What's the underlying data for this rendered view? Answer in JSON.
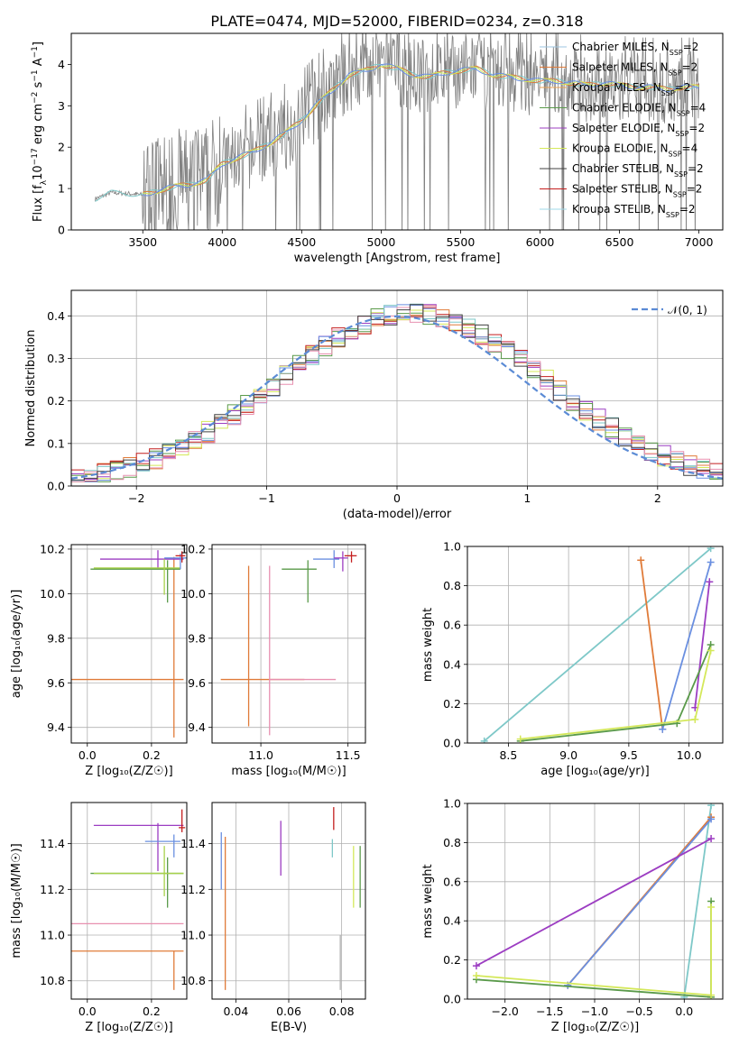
{
  "title": "PLATE=0474, MJD=52000, FIBERID=0234, z=0.318",
  "colors": {
    "grid": "#b0b0b0",
    "frame": "#000000",
    "gray": "#808080",
    "norm": "#5b8bd5",
    "orange": "#e07b39",
    "purple": "#9c3dc2",
    "yellow": "#d4e85a",
    "green": "#5a9a4a",
    "teal": "#7ec8c8",
    "red": "#c41e1e",
    "blue": "#6a8fe0",
    "pink": "#e890b0",
    "lime": "#a8d24a"
  },
  "chart_data": [
    {
      "id": "spectrum",
      "type": "line",
      "xlabel": "wavelength [Angstrom, rest frame]",
      "ylabel_parts": [
        "Flux [f",
        "λ",
        "10",
        "−17",
        " erg cm",
        "−2",
        " s",
        "−1",
        " A",
        "−1",
        "]"
      ],
      "xlim": [
        3050,
        7150
      ],
      "ylim": [
        0,
        4.75
      ],
      "xticks": [
        3500,
        4000,
        4500,
        5000,
        5500,
        6000,
        6500,
        7000
      ],
      "yticks": [
        0,
        1,
        2,
        3,
        4
      ],
      "legend": [
        {
          "label": "Chabrier MILES, N",
          "sub": "SSP",
          "suffix": "=2",
          "color": "#9ec6e0"
        },
        {
          "label": "Salpeter MILES, N",
          "sub": "SSP",
          "suffix": "=2",
          "color": "#e07b39"
        },
        {
          "label": "Kroupa MILES, N",
          "sub": "SSP",
          "suffix": "=2",
          "color": "#e8a050"
        },
        {
          "label": "Chabrier ELODIE, N",
          "sub": "SSP",
          "suffix": "=4",
          "color": "#5a9a4a"
        },
        {
          "label": "Salpeter ELODIE, N",
          "sub": "SSP",
          "suffix": "=2",
          "color": "#9c3dc2"
        },
        {
          "label": "Kroupa ELODIE, N",
          "sub": "SSP",
          "suffix": "=4",
          "color": "#d4e85a"
        },
        {
          "label": "Chabrier STELIB, N",
          "sub": "SSP",
          "suffix": "=2",
          "color": "#404040"
        },
        {
          "label": "Salpeter STELIB, N",
          "sub": "SSP",
          "suffix": "=2",
          "color": "#c41e1e"
        },
        {
          "label": "Kroupa STELIB, N",
          "sub": "SSP",
          "suffix": "=2",
          "color": "#9fd8e8"
        }
      ],
      "model_curve": {
        "x": [
          3200,
          3300,
          3400,
          3500,
          3600,
          3700,
          3800,
          3900,
          4000,
          4100,
          4200,
          4300,
          4400,
          4500,
          4600,
          4700,
          4800,
          4900,
          5000,
          5100,
          5200,
          5300,
          5400,
          5500,
          5600,
          5700,
          5800,
          5900,
          6000,
          6100,
          6200,
          6300,
          6400,
          6500,
          6600,
          6700,
          6800,
          6900,
          7000
        ],
        "y": [
          0.75,
          0.9,
          0.88,
          0.85,
          0.95,
          1.05,
          1.1,
          1.2,
          1.6,
          1.75,
          1.9,
          2.1,
          2.35,
          2.65,
          3.05,
          3.4,
          3.75,
          3.85,
          4.0,
          3.9,
          3.75,
          3.7,
          3.8,
          3.85,
          3.9,
          3.75,
          3.7,
          3.65,
          3.6,
          3.6,
          3.55,
          3.5,
          3.55,
          3.5,
          3.45,
          3.45,
          3.4,
          3.45,
          3.45
        ]
      }
    },
    {
      "id": "residuals",
      "type": "histogram",
      "xlabel": "(data-model)/error",
      "ylabel": "Normed distribution",
      "xlim": [
        -2.5,
        2.5
      ],
      "ylim": [
        0,
        0.46
      ],
      "xticks": [
        -2,
        -1,
        0,
        1,
        2
      ],
      "xticklabels": [
        "−2",
        "−1",
        "0",
        "1",
        "2"
      ],
      "yticks": [
        0.0,
        0.1,
        0.2,
        0.3,
        0.4
      ],
      "yticklabels": [
        "0.0",
        "0.1",
        "0.2",
        "0.3",
        "0.4"
      ],
      "legend_label": "𝒩(0, 1)",
      "normal_curve": {
        "mean": 0,
        "sigma": 1
      }
    },
    {
      "id": "Z-age",
      "type": "errorbar",
      "xlabel": "Z [log₁₀(Z/Z☉)]",
      "ylabel": "age  [log₁₀(age/yr)]",
      "xlim": [
        -0.05,
        0.31
      ],
      "ylim": [
        9.33,
        10.22
      ],
      "xticks": [
        0.0,
        0.2
      ],
      "xticklabels": [
        "0.0",
        "0.2"
      ],
      "yticks": [
        9.4,
        9.6,
        9.8,
        10.0,
        10.2
      ],
      "yticklabels": [
        "9.4",
        "9.6",
        "9.8",
        "10.0",
        "10.2"
      ],
      "points": [
        {
          "x": 0.27,
          "xerr": [
            0.32,
            0.03
          ],
          "y": 9.615,
          "yerr": [
            0.26,
            0.55
          ],
          "color": "#e07b39"
        },
        {
          "x": 0.22,
          "xerr": [
            0.18,
            0.08
          ],
          "y": 10.155,
          "yerr": [
            0.04,
            0.04
          ],
          "color": "#9c3dc2"
        },
        {
          "x": 0.25,
          "xerr": [
            0.24,
            0.04
          ],
          "y": 10.11,
          "yerr": [
            0.15,
            0.04
          ],
          "color": "#5a9a4a"
        },
        {
          "x": 0.24,
          "xerr": [
            0.22,
            0.05
          ],
          "y": 10.115,
          "yerr": [
            0.12,
            0.04
          ],
          "color": "#a8d24a"
        },
        {
          "x": 0.29,
          "xerr": [
            0.05,
            0.02
          ],
          "y": 10.16,
          "yerr": [
            0.05,
            0.02
          ],
          "color": "#6a8fe0"
        },
        {
          "x": 0.295,
          "xerr": [
            0.02,
            0.01
          ],
          "y": 10.17,
          "yerr": [
            0.03,
            0.02
          ],
          "color": "#c41e1e"
        }
      ]
    },
    {
      "id": "mass-age",
      "type": "errorbar",
      "xlabel": "mass [log₁₀(M/M☉)]",
      "ylabel": "",
      "xlim": [
        10.72,
        11.6
      ],
      "ylim": [
        9.33,
        10.22
      ],
      "xticks": [
        11.0,
        11.5
      ],
      "xticklabels": [
        "11.0",
        "11.5"
      ],
      "yticks": [
        9.4,
        9.6,
        9.8,
        10.0,
        10.2
      ],
      "yticklabels": [
        "9.4",
        "9.6",
        "9.8",
        "10.0",
        "10.2"
      ],
      "points": [
        {
          "x": 10.93,
          "xerr": [
            0.16,
            0.32
          ],
          "y": 9.615,
          "yerr": [
            0.21,
            0.51
          ],
          "color": "#e07b39"
        },
        {
          "x": 11.05,
          "xerr": [
            0.0,
            0.38
          ],
          "y": 9.615,
          "yerr": [
            0.25,
            0.51
          ],
          "color": "#e890b0"
        },
        {
          "x": 11.27,
          "xerr": [
            0.15,
            0.05
          ],
          "y": 10.11,
          "yerr": [
            0.15,
            0.04
          ],
          "color": "#5a9a4a"
        },
        {
          "x": 11.42,
          "xerr": [
            0.12,
            0.03
          ],
          "y": 10.155,
          "yerr": [
            0.04,
            0.04
          ],
          "color": "#6a8fe0"
        },
        {
          "x": 11.47,
          "xerr": [
            0.05,
            0.03
          ],
          "y": 10.16,
          "yerr": [
            0.06,
            0.03
          ],
          "color": "#9c3dc2"
        },
        {
          "x": 11.52,
          "xerr": [
            0.04,
            0.03
          ],
          "y": 10.17,
          "yerr": [
            0.03,
            0.02
          ],
          "color": "#c41e1e"
        }
      ]
    },
    {
      "id": "age-weight",
      "type": "line",
      "xlabel": "age  [log₁₀(age/yr)]",
      "ylabel": "mass weight",
      "xlim": [
        8.16,
        10.28
      ],
      "ylim": [
        0,
        1.0
      ],
      "xticks": [
        8.5,
        9.0,
        9.5,
        10.0
      ],
      "xticklabels": [
        "8.5",
        "9.0",
        "9.5",
        "10.0"
      ],
      "yticks": [
        0.0,
        0.2,
        0.4,
        0.6,
        0.8,
        1.0
      ],
      "yticklabels": [
        "0.0",
        "0.2",
        "0.4",
        "0.6",
        "0.8",
        "1.0"
      ],
      "series": [
        {
          "color": "#7ec8c8",
          "x": [
            8.3,
            10.18
          ],
          "y": [
            0.01,
            0.99
          ]
        },
        {
          "color": "#e07b39",
          "x": [
            9.6,
            9.78
          ],
          "y": [
            0.93,
            0.07
          ]
        },
        {
          "color": "#6a8fe0",
          "x": [
            9.78,
            10.18
          ],
          "y": [
            0.07,
            0.92
          ]
        },
        {
          "color": "#9c3dc2",
          "x": [
            10.05,
            10.17
          ],
          "y": [
            0.18,
            0.82
          ]
        },
        {
          "color": "#5a9a4a",
          "x": [
            8.6,
            9.9,
            10.18
          ],
          "y": [
            0.01,
            0.1,
            0.5
          ]
        },
        {
          "color": "#d4e85a",
          "x": [
            8.6,
            10.05,
            10.18
          ],
          "y": [
            0.02,
            0.12,
            0.47
          ]
        }
      ]
    },
    {
      "id": "Z-mass",
      "type": "errorbar",
      "xlabel": "Z [log₁₀(Z/Z☉)]",
      "ylabel": "mass [log₁₀(M/M☉)]",
      "xlim": [
        -0.05,
        0.31
      ],
      "ylim": [
        10.72,
        11.58
      ],
      "xticks": [
        0.0,
        0.2
      ],
      "xticklabels": [
        "0.0",
        "0.2"
      ],
      "yticks": [
        10.8,
        11.0,
        11.2,
        11.4
      ],
      "yticklabels": [
        "10.8",
        "11.0",
        "11.2",
        "11.4"
      ],
      "points": [
        {
          "x": 0.27,
          "xerr": [
            0.32,
            0.03
          ],
          "y": 10.93,
          "yerr": [
            0.17,
            0.0
          ],
          "color": "#e07b39"
        },
        {
          "x": 0.27,
          "xerr": [
            0.32,
            0.03
          ],
          "y": 11.05,
          "yerr": [
            0.0,
            0.0
          ],
          "color": "#e890b0"
        },
        {
          "x": 0.22,
          "xerr": [
            0.2,
            0.08
          ],
          "y": 11.48,
          "yerr": [
            0.2,
            0.01
          ],
          "color": "#9c3dc2"
        },
        {
          "x": 0.25,
          "xerr": [
            0.24,
            0.05
          ],
          "y": 11.27,
          "yerr": [
            0.15,
            0.07
          ],
          "color": "#5a9a4a"
        },
        {
          "x": 0.24,
          "xerr": [
            0.22,
            0.06
          ],
          "y": 11.27,
          "yerr": [
            0.1,
            0.12
          ],
          "color": "#a8d24a"
        },
        {
          "x": 0.27,
          "xerr": [
            0.09,
            0.02
          ],
          "y": 11.41,
          "yerr": [
            0.07,
            0.03
          ],
          "color": "#6a8fe0"
        },
        {
          "x": 0.295,
          "xerr": [
            0.01,
            0.01
          ],
          "y": 11.47,
          "yerr": [
            0.02,
            0.08
          ],
          "color": "#c41e1e"
        }
      ]
    },
    {
      "id": "EBV-mass",
      "type": "errorbar",
      "xlabel": "E(B-V)",
      "ylabel": "",
      "xlim": [
        0.031,
        0.089
      ],
      "ylim": [
        10.72,
        11.58
      ],
      "xticks": [
        0.04,
        0.06,
        0.08
      ],
      "xticklabels": [
        "0.04",
        "0.06",
        "0.08"
      ],
      "yticks": [
        10.8,
        11.0,
        11.2,
        11.4
      ],
      "yticklabels": [
        "10.8",
        "11.0",
        "11.2",
        "11.4"
      ],
      "points": [
        {
          "x": 0.0345,
          "y": 11.2,
          "yerr": [
            0.0,
            0.25
          ],
          "color": "#6a8fe0"
        },
        {
          "x": 0.036,
          "y": 11.0,
          "yerr": [
            0.24,
            0.43
          ],
          "color": "#e07b39"
        },
        {
          "x": 0.057,
          "y": 11.38,
          "yerr": [
            0.12,
            0.12
          ],
          "color": "#9c3dc2"
        },
        {
          "x": 0.0765,
          "y": 11.38,
          "yerr": [
            0.04,
            0.04
          ],
          "color": "#7ec8c8"
        },
        {
          "x": 0.077,
          "y": 11.5,
          "yerr": [
            0.04,
            0.06
          ],
          "color": "#c41e1e"
        },
        {
          "x": 0.0795,
          "y": 11.0,
          "yerr": [
            0.24,
            0.0
          ],
          "color": "#b0b0b0"
        },
        {
          "x": 0.0845,
          "y": 11.25,
          "yerr": [
            0.13,
            0.14
          ],
          "color": "#d4e85a"
        },
        {
          "x": 0.087,
          "y": 11.25,
          "yerr": [
            0.13,
            0.14
          ],
          "color": "#5a9a4a"
        }
      ]
    },
    {
      "id": "Z-weight",
      "type": "line",
      "xlabel": "Z [log₁₀(Z/Z☉)]",
      "ylabel": "mass weight",
      "xlim": [
        -2.42,
        0.43
      ],
      "ylim": [
        0,
        1.0
      ],
      "xticks": [
        -2.0,
        -1.5,
        -1.0,
        -0.5,
        0.0
      ],
      "xticklabels": [
        "−2.0",
        "−1.5",
        "−1.0",
        "−0.5",
        "0.0"
      ],
      "yticks": [
        0.0,
        0.2,
        0.4,
        0.6,
        0.8,
        1.0
      ],
      "yticklabels": [
        "0.0",
        "0.2",
        "0.4",
        "0.6",
        "0.8",
        "1.0"
      ],
      "series": [
        {
          "color": "#7ec8c8",
          "x": [
            0.0,
            0.3
          ],
          "y": [
            0.01,
            0.99
          ]
        },
        {
          "color": "#e07b39",
          "x": [
            -1.3,
            0.3
          ],
          "y": [
            0.07,
            0.93
          ]
        },
        {
          "color": "#6a8fe0",
          "x": [
            -1.3,
            0.3
          ],
          "y": [
            0.07,
            0.92
          ]
        },
        {
          "color": "#9c3dc2",
          "x": [
            -2.32,
            0.3
          ],
          "y": [
            0.17,
            0.82
          ]
        },
        {
          "color": "#5a9a4a",
          "x": [
            -2.32,
            0.3,
            0.3
          ],
          "y": [
            0.1,
            0.01,
            0.5
          ]
        },
        {
          "color": "#d4e85a",
          "x": [
            -2.32,
            0.3,
            0.3
          ],
          "y": [
            0.12,
            0.02,
            0.47
          ]
        }
      ]
    }
  ]
}
